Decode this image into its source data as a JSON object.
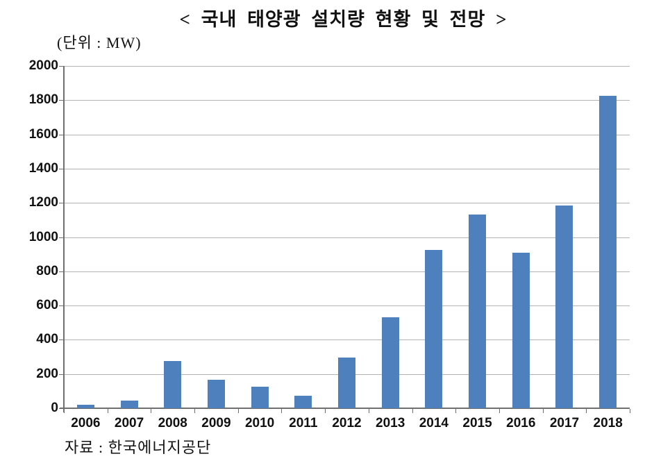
{
  "page": {
    "title": "< 국내 태양광 설치량 현황 및 전망 >",
    "unit_label": "(단위 : MW)",
    "source": "자료 : 한국에너지공단"
  },
  "chart_data": {
    "type": "bar",
    "title": "< 국내 태양광 설치량 현황 및 전망 >",
    "unit": "MW",
    "categories": [
      "2006",
      "2007",
      "2008",
      "2009",
      "2010",
      "2011",
      "2012",
      "2013",
      "2014",
      "2015",
      "2016",
      "2017",
      "2018"
    ],
    "values": [
      20,
      45,
      275,
      165,
      125,
      75,
      295,
      530,
      925,
      1130,
      910,
      1185,
      1825
    ],
    "xlabel": "",
    "ylabel": "",
    "ylim": [
      0,
      2000
    ],
    "ytick_step": 200,
    "grid": true,
    "legend": false,
    "bar_color": "#4d80bd",
    "gridline_color": "#b3b3b3",
    "axis_color": "#6f6f6f",
    "label_color": "#111111",
    "source": "자료 : 한국에너지공단"
  }
}
